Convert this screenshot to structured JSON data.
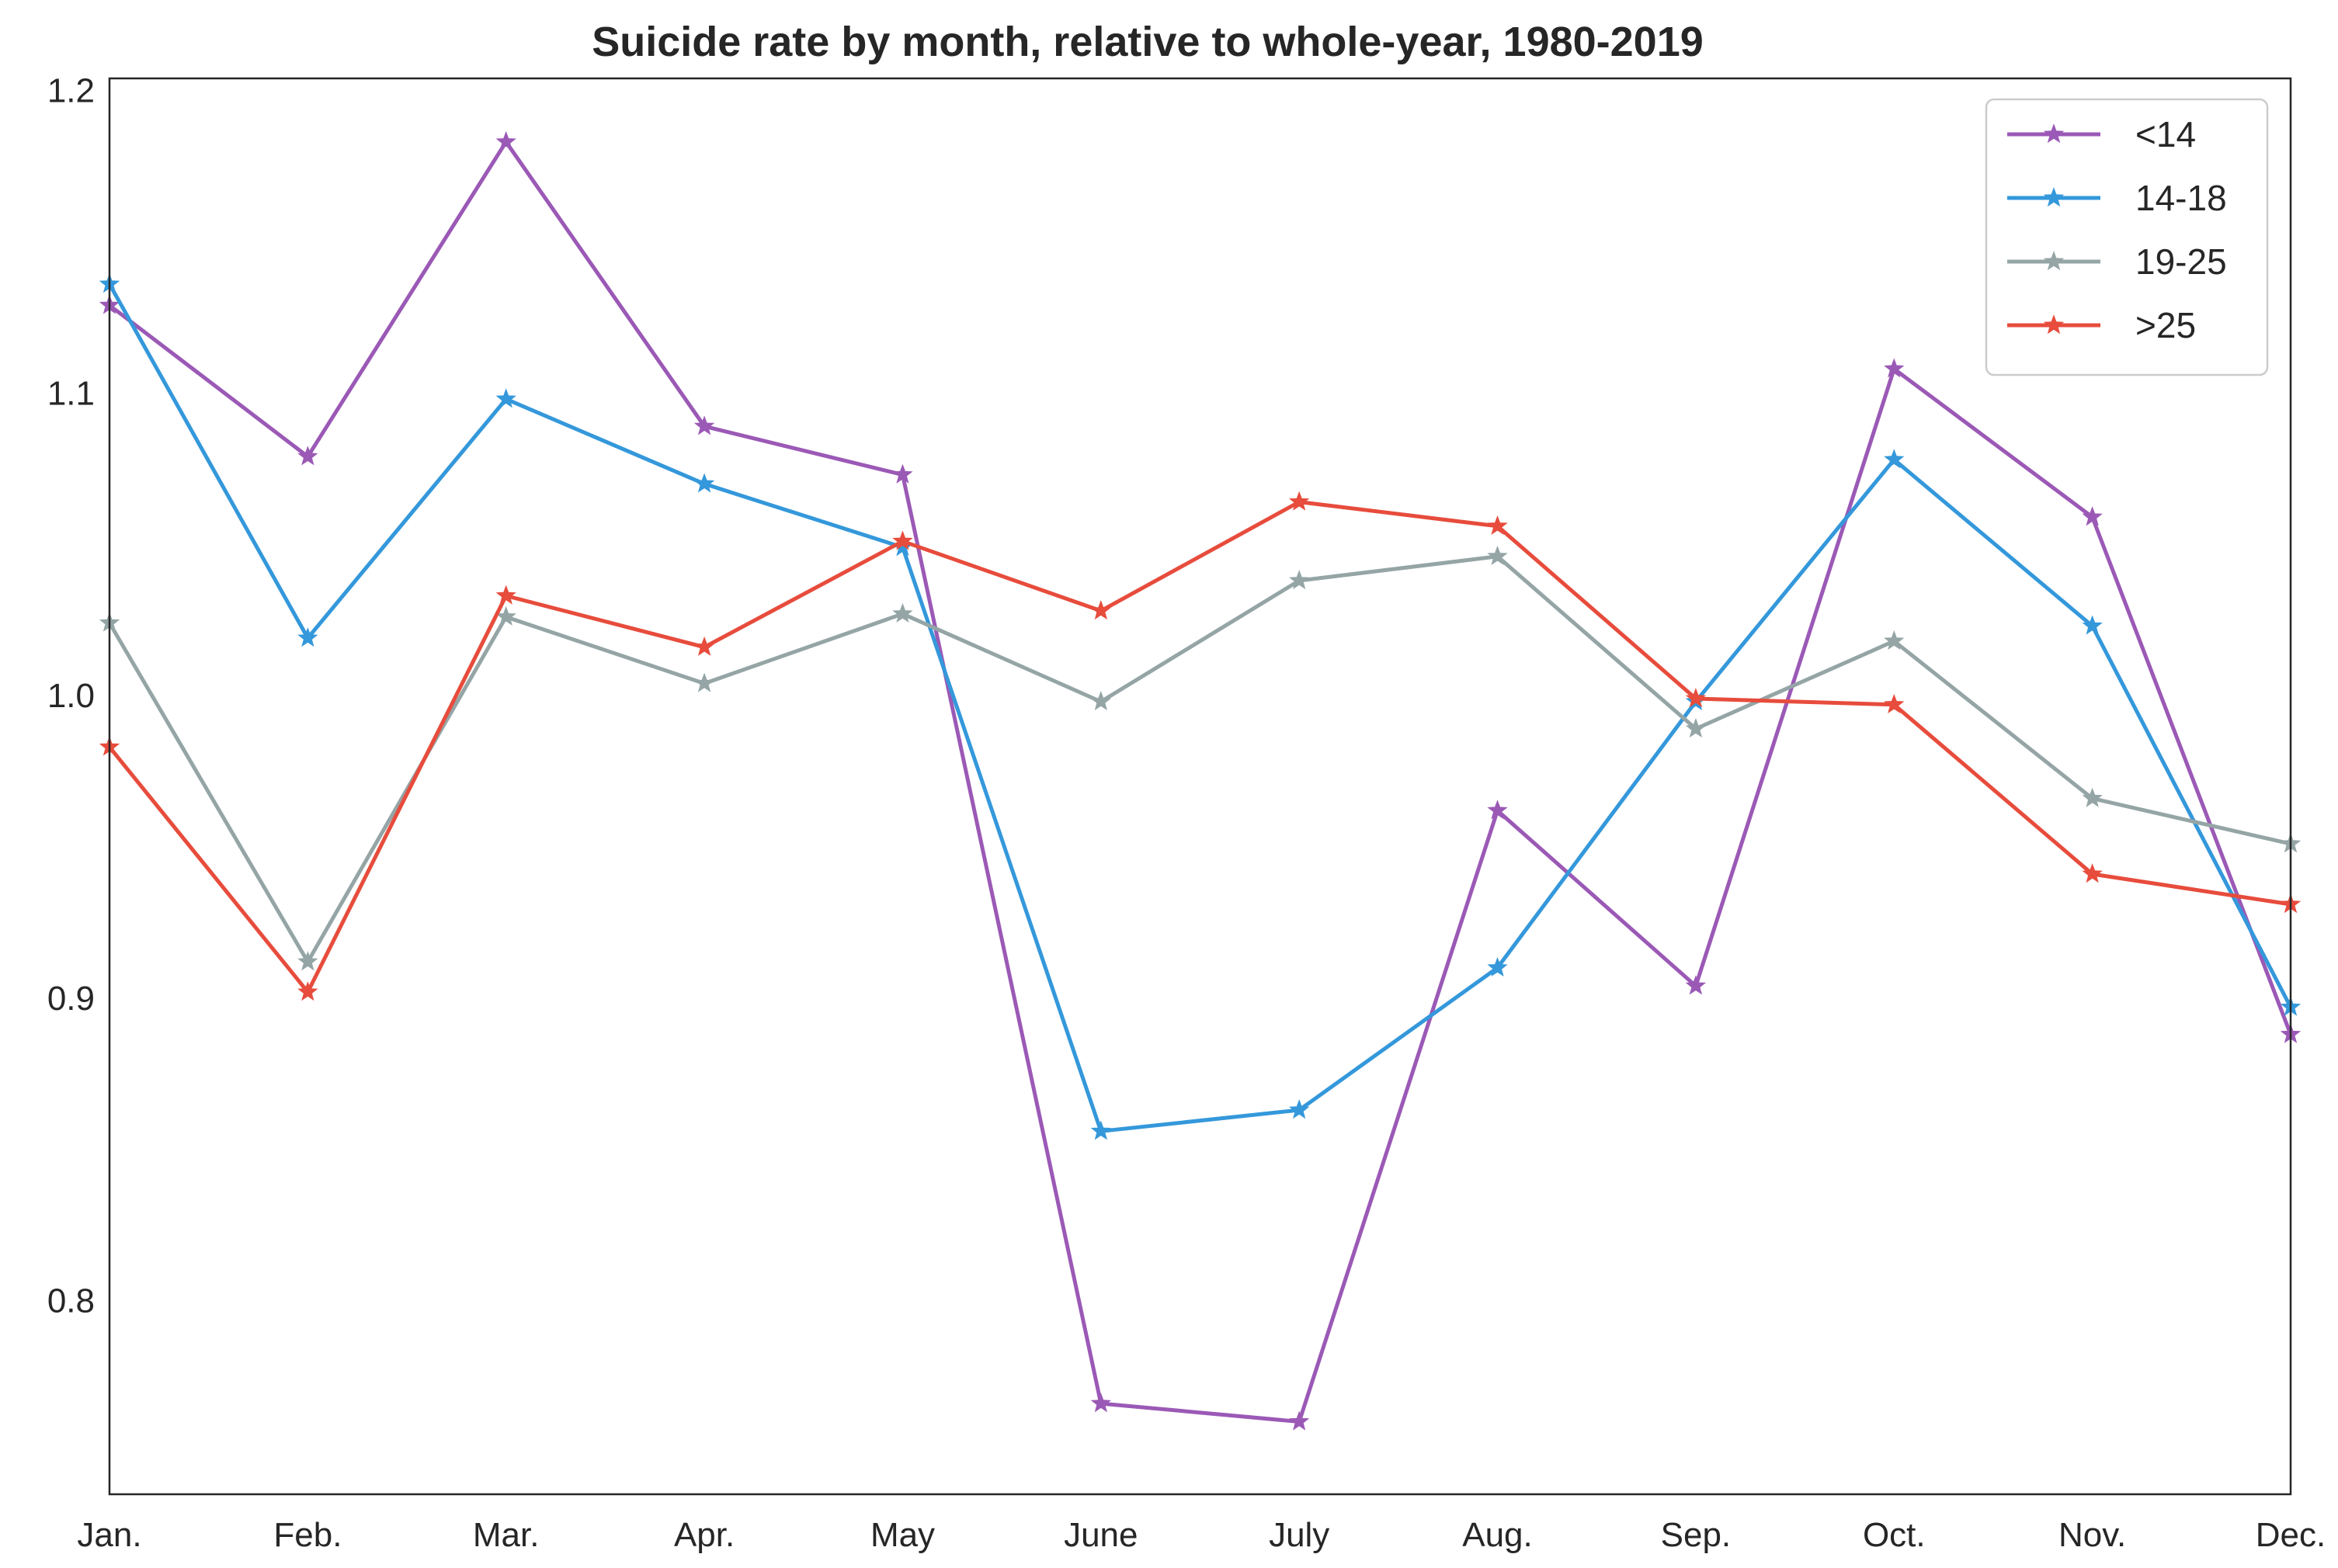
{
  "chart_data": {
    "type": "line",
    "title": "Suicide rate by month, relative to whole-year, 1980-2019",
    "xlabel": "",
    "ylabel": "",
    "categories": [
      "Jan.",
      "Feb.",
      "Mar.",
      "Apr.",
      "May",
      "June",
      "July",
      "Aug.",
      "Sep.",
      "Oct.",
      "Nov.",
      "Dec."
    ],
    "ylim": [
      0.736,
      1.204
    ],
    "yticks": [
      0.8,
      0.9,
      1.0,
      1.1,
      1.2
    ],
    "ytick_labels": [
      "0.8",
      "0.9",
      "1.0",
      "1.1",
      "1.2"
    ],
    "grid": false,
    "legend_position": "top-right",
    "marker": "star",
    "series": [
      {
        "name": "<14",
        "color": "#9b59b6",
        "values": [
          1.129,
          1.079,
          1.183,
          1.089,
          1.073,
          0.766,
          0.76,
          0.962,
          0.904,
          1.108,
          1.059,
          0.888
        ]
      },
      {
        "name": "14-18",
        "color": "#3498db",
        "values": [
          1.136,
          1.019,
          1.098,
          1.07,
          1.049,
          0.856,
          0.863,
          0.91,
          0.998,
          1.078,
          1.023,
          0.897
        ]
      },
      {
        "name": "19-25",
        "color": "#95a5a6",
        "values": [
          1.024,
          0.912,
          1.026,
          1.004,
          1.027,
          0.998,
          1.038,
          1.046,
          0.989,
          1.018,
          0.966,
          0.951
        ]
      },
      {
        "name": ">25",
        "color": "#e74c3c",
        "values": [
          0.983,
          0.902,
          1.033,
          1.016,
          1.051,
          1.028,
          1.064,
          1.056,
          0.999,
          0.997,
          0.941,
          0.931
        ]
      }
    ]
  }
}
